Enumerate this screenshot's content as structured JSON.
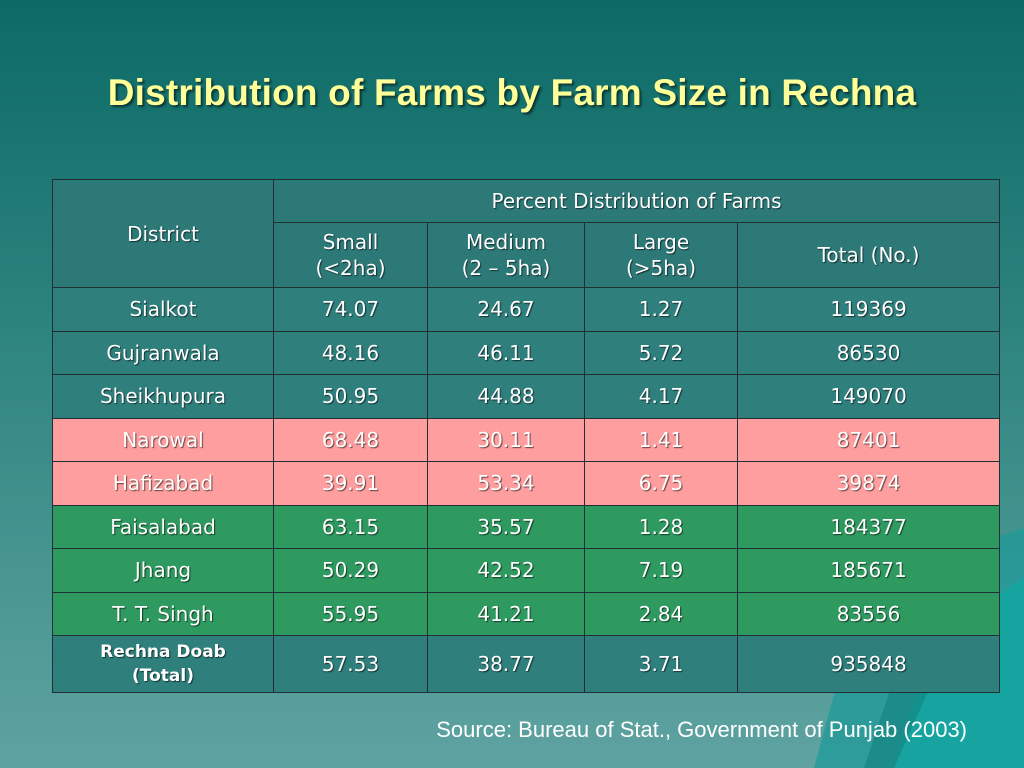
{
  "slide": {
    "title": "Distribution of Farms by Farm Size in Rechna",
    "source": "Source: Bureau of Stat., Government of Punjab (2003)"
  },
  "table": {
    "header_district": "District",
    "header_group": "Percent Distribution of Farms",
    "columns": [
      {
        "line1": "Small",
        "line2": "(<2ha)"
      },
      {
        "line1": "Medium",
        "line2": "(2 – 5ha)"
      },
      {
        "line1": "Large",
        "line2": "(>5ha)"
      },
      {
        "line1": "Total (No.)",
        "line2": ""
      }
    ],
    "rows": [
      {
        "district": "Sialkot",
        "small": "74.07",
        "medium": "24.67",
        "large": "1.27",
        "total": "119369",
        "color": "#2f7f7d"
      },
      {
        "district": "Gujranwala",
        "small": "48.16",
        "medium": "46.11",
        "large": "5.72",
        "total": "86530",
        "color": "#2f7f7d"
      },
      {
        "district": "Sheikhupura",
        "small": "50.95",
        "medium": "44.88",
        "large": "4.17",
        "total": "149070",
        "color": "#2f7f7d"
      },
      {
        "district": "Narowal",
        "small": "68.48",
        "medium": "30.11",
        "large": "1.41",
        "total": "87401",
        "color": "#ff9e9e"
      },
      {
        "district": "Hafizabad",
        "small": "39.91",
        "medium": "53.34",
        "large": "6.75",
        "total": "39874",
        "color": "#ff9e9e"
      },
      {
        "district": "Faisalabad",
        "small": "63.15",
        "medium": "35.57",
        "large": "1.28",
        "total": "184377",
        "color": "#2e9a60"
      },
      {
        "district": "Jhang",
        "small": "50.29",
        "medium": "42.52",
        "large": "7.19",
        "total": "185671",
        "color": "#2e9a60"
      },
      {
        "district": "T. T. Singh",
        "small": "55.95",
        "medium": "41.21",
        "large": "2.84",
        "total": "83556",
        "color": "#2e9a60"
      }
    ],
    "total_row": {
      "district_line1": "Rechna Doab",
      "district_line2": "(Total)",
      "small": "57.53",
      "medium": "38.77",
      "large": "3.71",
      "total": "935848",
      "color": "#2f7f7d"
    }
  }
}
